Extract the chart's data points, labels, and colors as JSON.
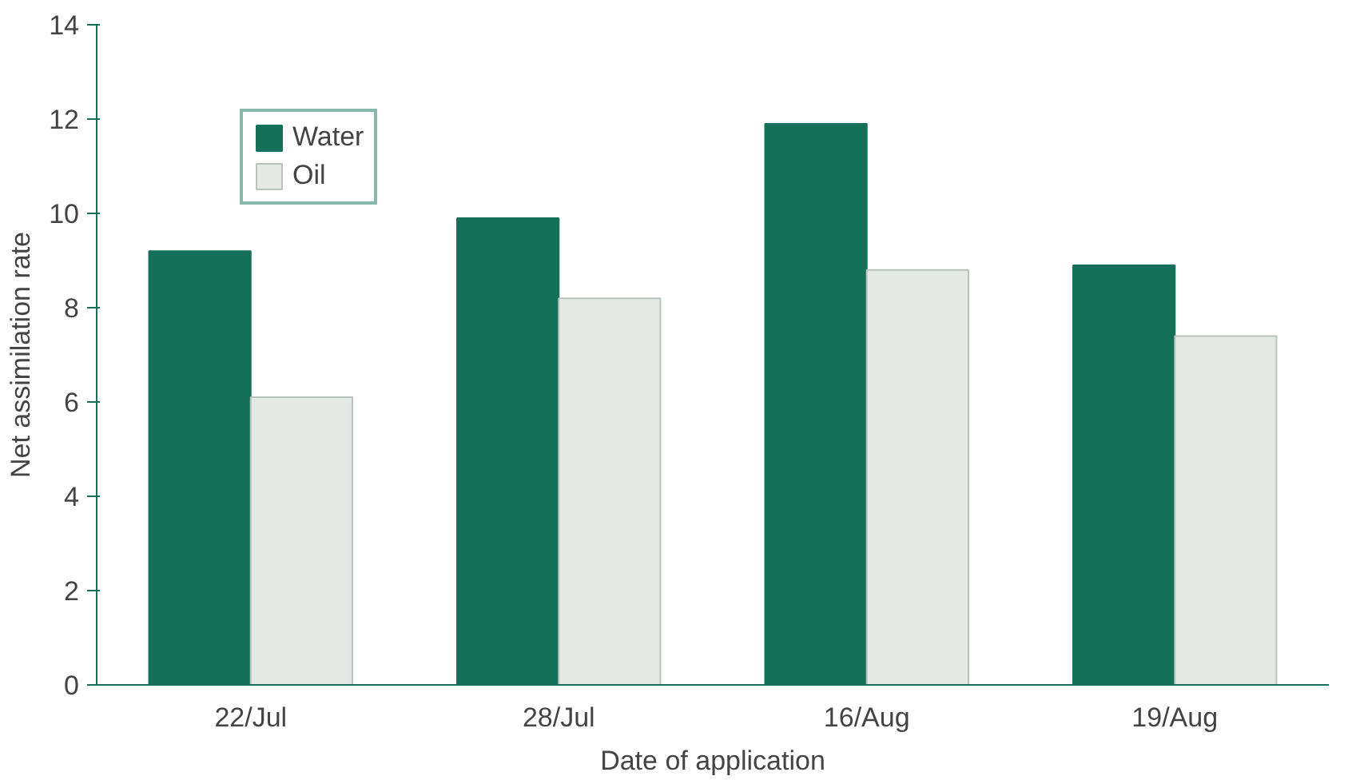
{
  "chart_data": {
    "type": "bar",
    "xlabel": "Date of application",
    "ylabel": "Net assimilation rate",
    "categories": [
      "22/Jul",
      "28/Jul",
      "16/Aug",
      "19/Aug"
    ],
    "series": [
      {
        "name": "Water",
        "color": "#147058",
        "values": [
          9.2,
          9.9,
          11.9,
          8.9
        ]
      },
      {
        "name": "Oil",
        "color": "#e4e9e5",
        "values": [
          6.1,
          8.2,
          8.8,
          7.4
        ]
      }
    ],
    "ylim": [
      0,
      14
    ],
    "yticks": [
      0,
      2,
      4,
      6,
      8,
      10,
      12,
      14
    ],
    "grid": false,
    "legend": "top left"
  }
}
